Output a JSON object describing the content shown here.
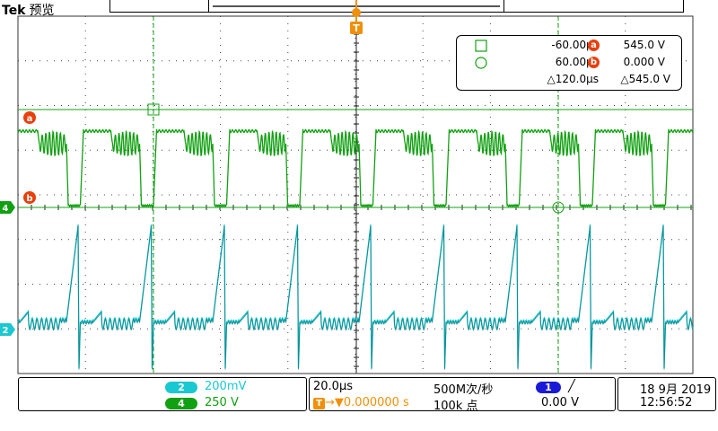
{
  "brand": {
    "logo": "Tek",
    "mode": "预览"
  },
  "trigger_marker": "T",
  "channels": [
    {
      "id": "2",
      "scale": "200mV",
      "color": "#19c8d0"
    },
    {
      "id": "4",
      "scale": "250 V",
      "color": "#11a011"
    }
  ],
  "reference_markers": {
    "ch4": "4",
    "ch2": "2",
    "cursor_a": "a",
    "cursor_b": "b"
  },
  "cursors": {
    "time_a": "-60.00µs",
    "time_b": "60.00µs",
    "delta_time": "△120.0µs",
    "value_a": "545.0 V",
    "value_b": "0.000 V",
    "delta_value": "△545.0 V",
    "badge_a": "a",
    "badge_b": "b"
  },
  "timebase": {
    "scale": "20.0µs",
    "sample_rate": "500M次/秒",
    "record_length": "100k 点",
    "trigger_position": "→▼0.000000 s",
    "trigger_source": "1",
    "trigger_slope": "╱",
    "trigger_level": "0.00 V"
  },
  "datetime": {
    "date": "18 9月 2019",
    "time": "12:56:52"
  },
  "colors": {
    "ch4": "#11a011",
    "ch2": "#19c8d0",
    "cursor_badge": "#e8400c",
    "trigger_badge": "#f0900a",
    "ch1_badge": "#1a1ad6"
  }
}
